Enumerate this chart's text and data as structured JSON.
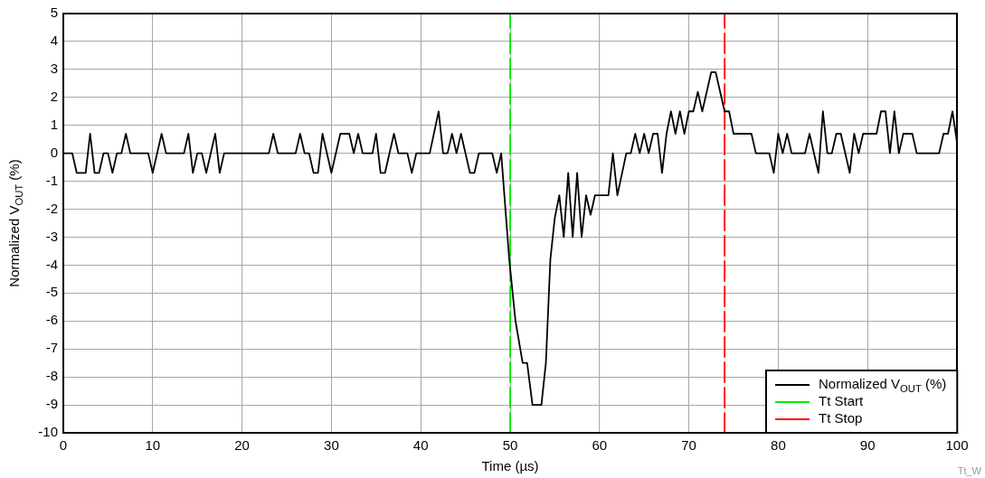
{
  "chart_data": {
    "type": "line",
    "xlabel": "Time (µs)",
    "ylabel": "Normalized V$_{OUT}$ (%)",
    "xlim": [
      0,
      100
    ],
    "xticks": [
      0,
      10,
      20,
      30,
      40,
      50,
      60,
      70,
      80,
      90,
      100
    ],
    "ylim": [
      -10,
      5
    ],
    "yticks": [
      -10,
      -9,
      -8,
      -7,
      -6,
      -5,
      -4,
      -3,
      -2,
      -1,
      0,
      1,
      2,
      3,
      4,
      5
    ],
    "grid": true,
    "legend": "bottom right",
    "marker": "none",
    "line_style": "solid",
    "series": [
      {
        "name": "Normalized V$_{OUT}$ (%)",
        "color": "#000000",
        "x": [
          0,
          1,
          1.5,
          2.5,
          3,
          3.5,
          4,
          4.5,
          5,
          5.5,
          6,
          6.5,
          7,
          7.5,
          9.5,
          10,
          11,
          11.5,
          13.5,
          14,
          14.5,
          15,
          15.5,
          16,
          17,
          17.5,
          18,
          23,
          23.5,
          24,
          26,
          26.5,
          27,
          27.5,
          28,
          28.5,
          29,
          30,
          31,
          32,
          32.5,
          33,
          33.5,
          34.6,
          35,
          35.5,
          36,
          37,
          37.5,
          38.5,
          39,
          39.5,
          41,
          42,
          42.5,
          43,
          43.5,
          44,
          44.5,
          45.5,
          46,
          46.5,
          48,
          48.5,
          49,
          49.9,
          50.6,
          51.4,
          51.9,
          52.5,
          53.5,
          54,
          54.5,
          55,
          55.5,
          56,
          56.5,
          57,
          57.5,
          58,
          58.5,
          59,
          59.5,
          61,
          61.5,
          62,
          63,
          63.5,
          64,
          64.5,
          65,
          65.5,
          66,
          66.5,
          67,
          67.5,
          68,
          68.5,
          69,
          69.5,
          70,
          70.5,
          71,
          71.5,
          72.5,
          73,
          74,
          74.5,
          75,
          77,
          77.5,
          79,
          79.5,
          80,
          80.5,
          81,
          81.5,
          83,
          83.5,
          84.5,
          85,
          85.5,
          86,
          86.5,
          87,
          88,
          88.5,
          89,
          89.5,
          91,
          91.5,
          92,
          92.5,
          93,
          93.5,
          94,
          95,
          95.5,
          98,
          98.5,
          99,
          99.5,
          100
        ],
        "values": [
          0,
          0,
          -0.7,
          -0.7,
          0.7,
          -0.7,
          -0.7,
          0,
          0,
          -0.7,
          0,
          0,
          0.7,
          0,
          0,
          -0.7,
          0.7,
          0,
          0,
          0.7,
          -0.7,
          0,
          0,
          -0.7,
          0.7,
          -0.7,
          0,
          0,
          0.7,
          0,
          0,
          0.7,
          0,
          0,
          -0.7,
          -0.7,
          0.7,
          -0.7,
          0.7,
          0.7,
          0,
          0.7,
          0,
          0,
          0.7,
          -0.7,
          -0.7,
          0.7,
          0,
          0,
          -0.7,
          0,
          0,
          1.5,
          0,
          0,
          0.7,
          0,
          0.7,
          -0.7,
          -0.7,
          0,
          0,
          -0.7,
          0,
          -3.8,
          -6,
          -7.5,
          -7.5,
          -9,
          -9,
          -7.5,
          -3.8,
          -2.3,
          -1.5,
          -3,
          -0.7,
          -3,
          -0.7,
          -3,
          -1.5,
          -2.2,
          -1.5,
          -1.5,
          0,
          -1.5,
          0,
          0,
          0.7,
          0,
          0.7,
          0,
          0.7,
          0.7,
          -0.7,
          0.7,
          1.5,
          0.7,
          1.5,
          0.7,
          1.5,
          1.5,
          2.2,
          1.5,
          2.9,
          2.9,
          1.5,
          1.5,
          0.7,
          0.7,
          0,
          0,
          -0.7,
          0.7,
          0,
          0.7,
          0,
          0,
          0.7,
          -0.7,
          1.5,
          0,
          0,
          0.7,
          0.7,
          -0.7,
          0.7,
          0,
          0.7,
          0.7,
          1.5,
          1.5,
          0,
          1.5,
          0,
          0.7,
          0.7,
          0,
          0,
          0.7,
          0.7,
          1.5,
          0.4
        ]
      },
      {
        "name": "Tt Start",
        "color": "#00ee00",
        "line_style": "dashed",
        "x": [
          50,
          50
        ],
        "values": [
          -10,
          5
        ]
      },
      {
        "name": "Tt Stop",
        "color": "#ff0000",
        "line_style": "dashed",
        "x": [
          74,
          74
        ],
        "values": [
          -10,
          5
        ]
      }
    ],
    "annotations": [
      "Tt_W"
    ]
  }
}
